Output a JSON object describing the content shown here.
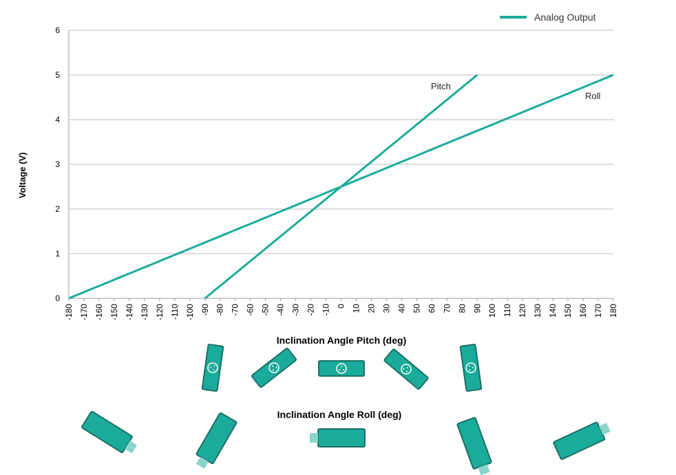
{
  "chart_data": {
    "type": "line",
    "ylabel": "Voltage (V)",
    "ylim": [
      0,
      6
    ],
    "yticks": [
      "0",
      "1",
      "2",
      "3",
      "4",
      "5",
      "6"
    ],
    "xlim": [
      -180,
      180
    ],
    "xticks": [
      "-180",
      "-170",
      "-160",
      "-150",
      "-140",
      "-130",
      "-120",
      "-110",
      "-100",
      "-90",
      "-80",
      "-70",
      "-60",
      "-50",
      "-40",
      "-30",
      "-20",
      "-10",
      "0",
      "10",
      "20",
      "30",
      "40",
      "50",
      "60",
      "70",
      "80",
      "90",
      "100",
      "110",
      "120",
      "130",
      "140",
      "150",
      "160",
      "170",
      "180"
    ],
    "grid": "horizontal",
    "legend": {
      "label": "Analog Output",
      "placement": "top-right",
      "color": "#1aab9b"
    },
    "series": [
      {
        "name": "Pitch",
        "color": "#1aab9b",
        "x": [
          -90,
          90
        ],
        "y": [
          0,
          5
        ]
      },
      {
        "name": "Roll",
        "color": "#1aab9b",
        "x": [
          -180,
          180
        ],
        "y": [
          0,
          5
        ]
      }
    ]
  },
  "labels": {
    "pitch_axis": "Inclination Angle Pitch (deg)",
    "roll_axis": "Inclination Angle  Roll (deg)"
  },
  "colors": {
    "device": "#1aab9b",
    "device_edge": "#1c6f66",
    "connector": "#8ad5cc",
    "grid": "#bdbdbd"
  },
  "orientation_icons": {
    "pitch": [
      "sensor-icon",
      "sensor-icon",
      "sensor-icon",
      "sensor-icon",
      "sensor-icon"
    ],
    "roll": [
      "sensor-icon",
      "sensor-icon",
      "sensor-icon",
      "sensor-icon",
      "sensor-icon"
    ]
  }
}
